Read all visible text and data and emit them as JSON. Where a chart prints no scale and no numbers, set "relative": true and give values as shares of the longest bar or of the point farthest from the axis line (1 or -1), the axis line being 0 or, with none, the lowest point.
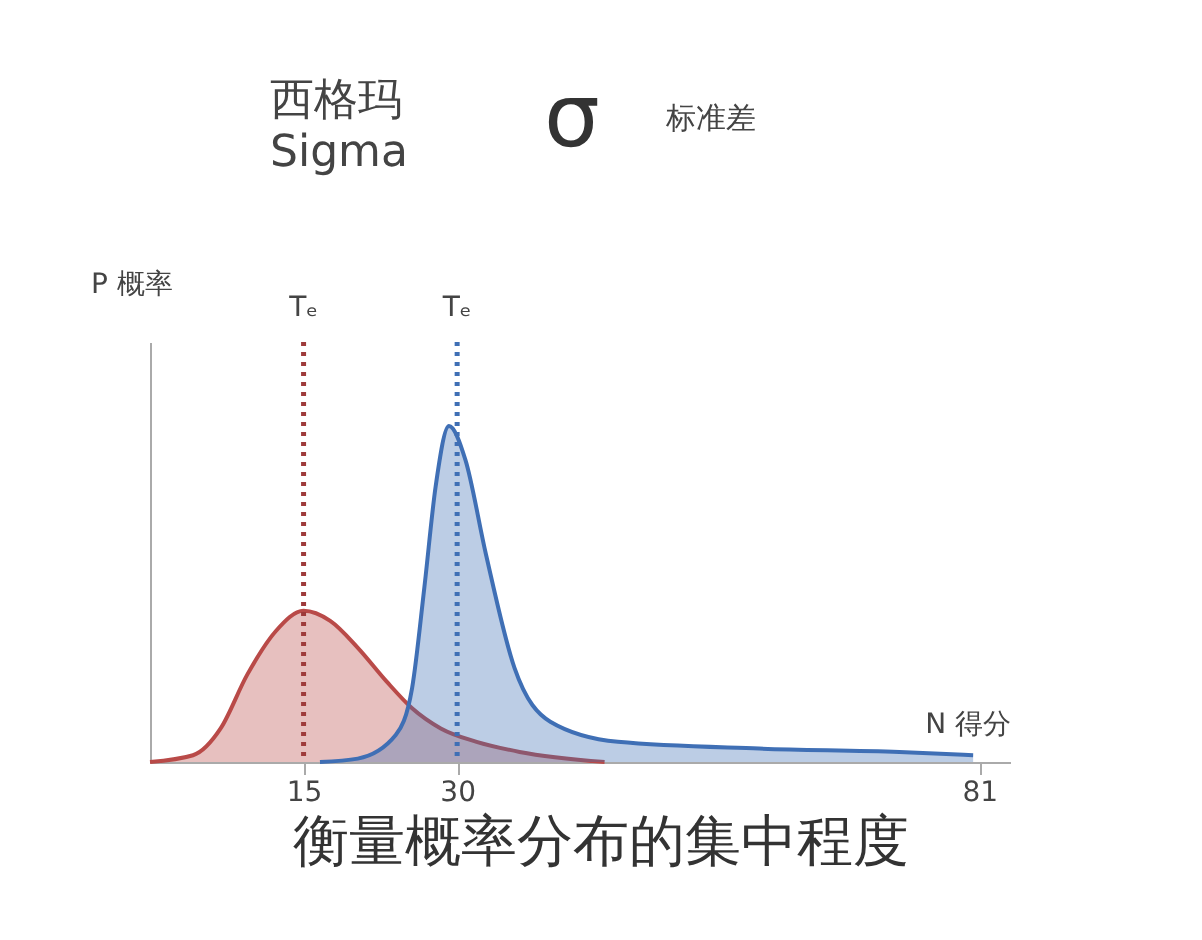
{
  "chart_data": {
    "type": "area",
    "title": "西格玛",
    "subtitle": "Sigma",
    "ylabel": "P 概率",
    "xlabel": "N 得分",
    "relative": true,
    "annotations": [
      "σ",
      "标准差",
      "衡量概率分布的集中程度"
    ],
    "xlim": [
      0,
      84
    ],
    "xticks": [
      15,
      30,
      81
    ],
    "grid": false,
    "series": [
      {
        "color": "#b94a48",
        "x": [
          0,
          4.2,
          6.9,
          9.5,
          12.3,
          15,
          17.6,
          20.3,
          23.1,
          25.6,
          28.4,
          31.9,
          36.1,
          44.4
        ],
        "values": [
          0,
          0.02,
          0.1,
          0.26,
          0.39,
          0.45,
          0.42,
          0.34,
          0.24,
          0.16,
          0.1,
          0.06,
          0.03,
          0
        ]
      },
      {
        "color": "#3f6fb5",
        "x": [
          16.6,
          20.3,
          24,
          25.6,
          26.8,
          27.9,
          29.2,
          30.8,
          32.8,
          35.6,
          39.1,
          45.7,
          59.5,
          73.2,
          80.4
        ],
        "values": [
          0,
          0.01,
          0.08,
          0.22,
          0.52,
          0.82,
          1,
          0.9,
          0.62,
          0.28,
          0.12,
          0.06,
          0.04,
          0.03,
          0.02
        ]
      }
    ],
    "ref_lines": [
      {
        "axis": "x",
        "value": 15,
        "label": "Tₑ",
        "color": "#9e3b3b",
        "line_style": "dotted"
      },
      {
        "axis": "x",
        "value": 30,
        "label": "Tₑ",
        "color": "#3f6fb5",
        "line_style": "dotted"
      }
    ]
  }
}
